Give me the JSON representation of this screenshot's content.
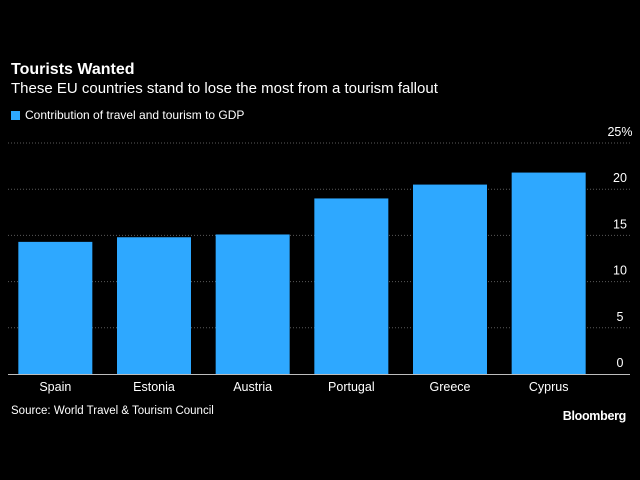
{
  "header": {
    "title": "Tourists Wanted",
    "subtitle": "These EU countries stand to lose the most from a tourism fallout"
  },
  "legend": {
    "label": "Contribution of travel and tourism to GDP",
    "color": "#2ea8ff"
  },
  "footer": {
    "source": "Source: World Travel & Tourism Council",
    "brand": "Bloomberg"
  },
  "colors": {
    "background": "#000000",
    "bar": "#2ea8ff",
    "grid": "#5a5a5a",
    "text": "#ffffff"
  },
  "chart_data": {
    "type": "bar",
    "title": "Tourists Wanted",
    "subtitle": "These EU countries stand to lose the most from a tourism fallout",
    "xlabel": "",
    "ylabel": "",
    "categories": [
      "Spain",
      "Estonia",
      "Austria",
      "Portugal",
      "Greece",
      "Cyprus"
    ],
    "series": [
      {
        "name": "Contribution of travel and tourism to GDP",
        "values": [
          14.3,
          14.8,
          15.1,
          19.0,
          20.5,
          21.8
        ]
      }
    ],
    "ylim": [
      0,
      25
    ],
    "yticks": [
      0,
      5,
      10,
      15,
      20,
      25
    ],
    "ytick_labels": [
      "0",
      "5",
      "10",
      "15",
      "20",
      "25%"
    ],
    "grid": true,
    "y_axis_side": "right",
    "legend_position": "top-left"
  }
}
